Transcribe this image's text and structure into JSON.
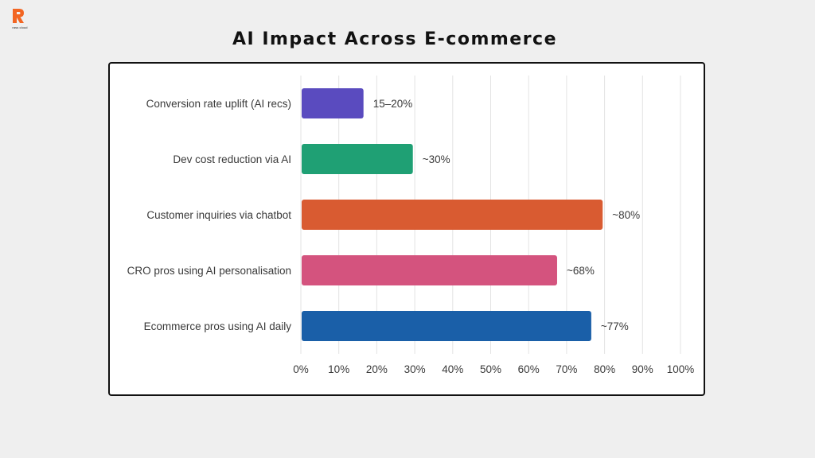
{
  "brand": {
    "logo_text": "rass cloud",
    "accent": "#f26522"
  },
  "page_title": "AI Impact Across E-commerce",
  "chart_data": {
    "type": "bar",
    "orientation": "horizontal",
    "title": "",
    "xlabel": "",
    "ylabel": "",
    "xlim": [
      0,
      100
    ],
    "x_ticks": [
      "0%",
      "10%",
      "20%",
      "30%",
      "40%",
      "50%",
      "60%",
      "70%",
      "80%",
      "90%",
      "100%"
    ],
    "grid": true,
    "categories": [
      "Conversion rate uplift (AI recs)",
      "Dev cost reduction via AI",
      "Customer inquiries via chatbot",
      "CRO pros using AI personalisation",
      "Ecommerce pros using AI daily"
    ],
    "values": [
      16.5,
      29.5,
      79.5,
      67.5,
      76.5
    ],
    "data_labels": [
      "15–20%",
      "~30%",
      "~80%",
      "~68%",
      "~77%"
    ],
    "colors": [
      "#5a4bbf",
      "#1fa074",
      "#d95b31",
      "#d4537e",
      "#1a5fa8"
    ]
  }
}
